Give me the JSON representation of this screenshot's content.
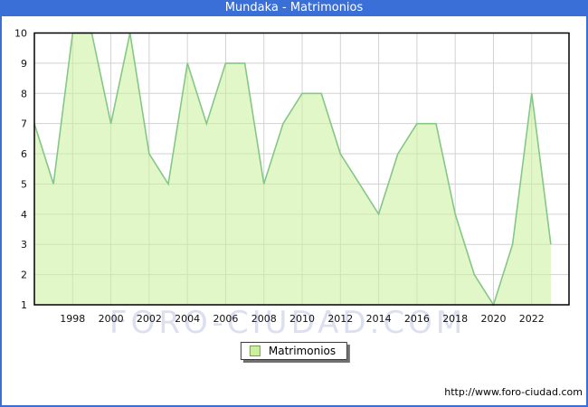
{
  "title_bar": {
    "title": "Mundaka - Matrimonios"
  },
  "legend": {
    "label": "Matrimonios"
  },
  "watermark": {
    "text": "FORO-CIUDAD.COM"
  },
  "footer": {
    "url": "http://www.foro-ciudad.com"
  },
  "chart_data": {
    "type": "area",
    "title": "Mundaka - Matrimonios",
    "series_name": "Matrimonios",
    "x": [
      1996,
      1997,
      1998,
      1999,
      2000,
      2001,
      2002,
      2003,
      2004,
      2005,
      2006,
      2007,
      2008,
      2009,
      2010,
      2011,
      2012,
      2013,
      2014,
      2015,
      2016,
      2017,
      2018,
      2019,
      2020,
      2021,
      2022,
      2023
    ],
    "values": [
      7,
      5,
      10,
      10,
      7,
      10,
      6,
      5,
      9,
      7,
      9,
      9,
      5,
      7,
      8,
      8,
      6,
      5,
      4,
      6,
      7,
      7,
      4,
      2,
      1,
      3,
      8,
      3
    ],
    "ylim": [
      1,
      10
    ],
    "yticks": [
      1,
      2,
      3,
      4,
      5,
      6,
      7,
      8,
      9,
      10
    ],
    "xticks": [
      1998,
      2000,
      2002,
      2004,
      2006,
      2008,
      2010,
      2012,
      2014,
      2016,
      2018,
      2020,
      2022
    ],
    "grid": true,
    "legend_position": "bottom-center",
    "colors": {
      "accent_blue": "#3a6fd8",
      "line": "#85c785",
      "fill": "rgba(202,240,155,0.55)",
      "grid": "#d2d2d2",
      "plot_border": "#000000",
      "tick_text": "#111111"
    }
  }
}
